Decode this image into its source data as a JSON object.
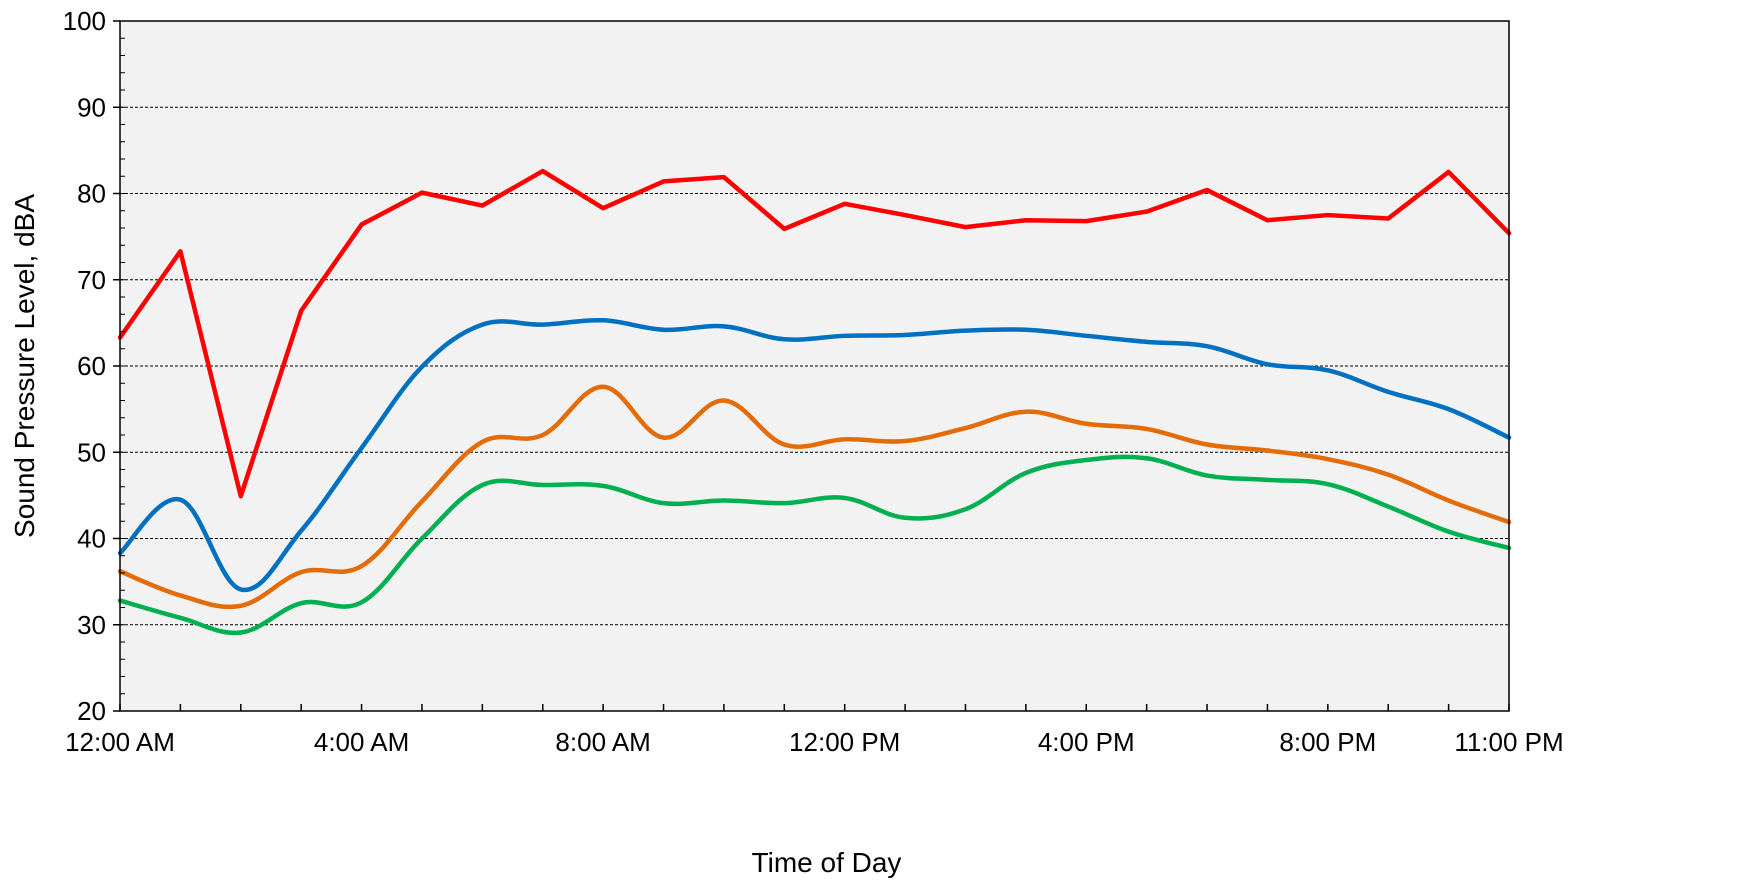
{
  "chart_data": {
    "type": "line",
    "title": "",
    "xlabel": "Time of Day",
    "ylabel": "Sound Pressure Level, dBA",
    "ylim": [
      20,
      100
    ],
    "y_ticks": [
      20,
      30,
      40,
      50,
      60,
      70,
      80,
      90,
      100
    ],
    "x_hours": [
      0,
      1,
      2,
      3,
      4,
      5,
      6,
      7,
      8,
      9,
      10,
      11,
      12,
      13,
      14,
      15,
      16,
      17,
      18,
      19,
      20,
      21,
      22,
      23
    ],
    "x_tick_labels": [
      {
        "hour": 0,
        "label": "12:00 AM"
      },
      {
        "hour": 4,
        "label": "4:00 AM"
      },
      {
        "hour": 8,
        "label": "8:00 AM"
      },
      {
        "hour": 12,
        "label": "12:00 PM"
      },
      {
        "hour": 16,
        "label": "4:00 PM"
      },
      {
        "hour": 20,
        "label": "8:00 PM"
      },
      {
        "hour": 23,
        "label": "11:00 PM"
      }
    ],
    "xlim": [
      0,
      23
    ],
    "grid": "horizontal dashed",
    "background": "#f2f2f2",
    "series": [
      {
        "color": "#ff0000",
        "smooth": false,
        "values": [
          63.3,
          73.3,
          44.9,
          66.4,
          76.4,
          80.1,
          78.6,
          82.6,
          78.3,
          81.4,
          81.9,
          75.9,
          78.8,
          77.5,
          76.1,
          76.9,
          76.8,
          77.9,
          80.4,
          76.9,
          77.5,
          77.1,
          82.5,
          75.4
        ]
      },
      {
        "color": "#0070c0",
        "smooth": true,
        "values": [
          38.3,
          44.5,
          34.1,
          40.9,
          50.5,
          59.9,
          64.8,
          64.8,
          65.3,
          64.2,
          64.6,
          63.1,
          63.5,
          63.6,
          64.1,
          64.2,
          63.5,
          62.8,
          62.3,
          60.2,
          59.5,
          57.0,
          55.0,
          51.7
        ]
      },
      {
        "color": "#e36c09",
        "smooth": true,
        "values": [
          36.2,
          33.4,
          32.2,
          36.1,
          36.8,
          44.3,
          51.2,
          52.0,
          57.6,
          51.7,
          56.0,
          50.9,
          51.5,
          51.3,
          52.8,
          54.7,
          53.3,
          52.7,
          50.9,
          50.2,
          49.2,
          47.4,
          44.4,
          41.9
        ]
      },
      {
        "color": "#00b050",
        "smooth": true,
        "values": [
          32.8,
          30.8,
          29.1,
          32.5,
          32.6,
          40.0,
          46.2,
          46.2,
          46.1,
          44.1,
          44.4,
          44.1,
          44.7,
          42.4,
          43.4,
          47.6,
          49.1,
          49.3,
          47.3,
          46.8,
          46.3,
          43.7,
          40.8,
          38.9
        ]
      }
    ]
  }
}
